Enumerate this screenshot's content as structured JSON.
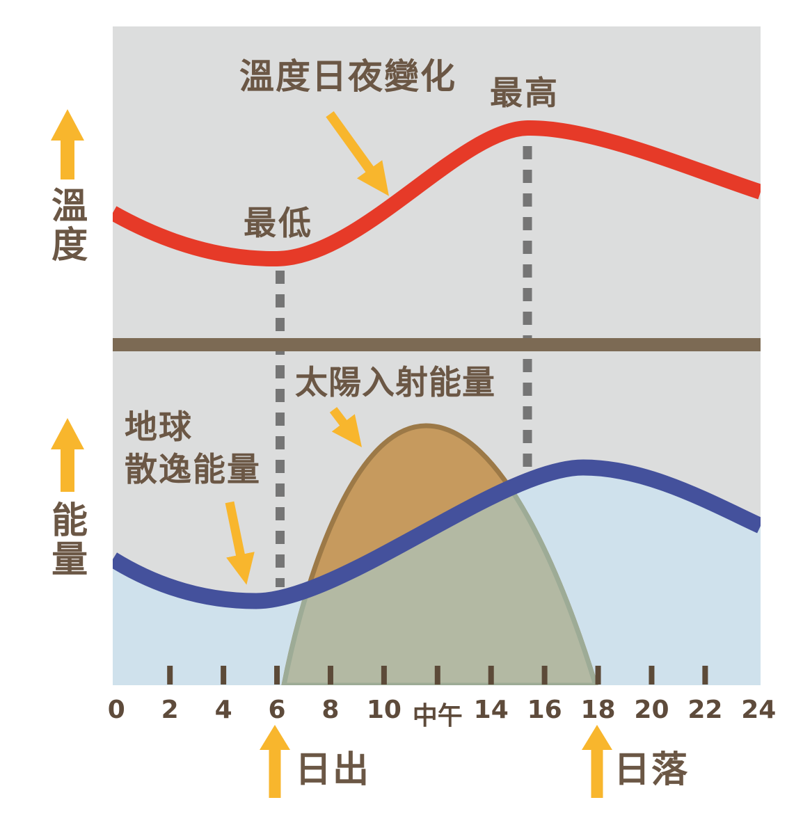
{
  "labels": {
    "curve_title": "溫度日夜變化",
    "temp_min": "最低",
    "temp_max": "最高",
    "left_axis_top": "溫度",
    "left_axis_bottom": "能量",
    "solar_label": "太陽入射能量",
    "earth_label_line1": "地球",
    "earth_label_line2": "散逸能量",
    "sunrise": "日出",
    "sunset": "日落"
  },
  "colors": {
    "panel_background": "#dcdddd",
    "divider_bar": "#7c6a54",
    "temperature_curve": "#e63a28",
    "earth_energy_curve": "#44519c",
    "earth_energy_fill": "#cfe1ec",
    "solar_dome_fill": "#c69a5e",
    "solar_dome_stroke": "#9c7947",
    "solar_under_earth_fill": "#b3b9a3",
    "solar_under_earth_stroke": "#9dab96",
    "annotation_arrow": "#f8b62d",
    "dashed_guide": "#757575",
    "axis_tick": "#5c4a38",
    "label_text": "#6b5745",
    "axis_number_text": "#5e4b3b"
  },
  "chart_data": {
    "type": "line",
    "title": "溫度日夜變化",
    "grid": false,
    "legend_position": "none",
    "x_axis": {
      "range": [
        0,
        24
      ],
      "tick_hours": [
        0,
        2,
        4,
        6,
        8,
        10,
        12,
        14,
        16,
        18,
        20,
        22,
        24
      ],
      "tick_labels": [
        "0",
        "2",
        "4",
        "6",
        "8",
        "10",
        "中午",
        "14",
        "16",
        "18",
        "20",
        "22",
        "24"
      ],
      "marked_tick_hours": [
        2,
        4,
        6,
        8,
        10,
        12,
        14,
        16,
        18,
        20,
        22
      ]
    },
    "panels": [
      {
        "axis_label": "溫度",
        "series": [
          {
            "name": "溫度日夜變化",
            "type": "line",
            "color": "#e63a28",
            "x": [
              0,
              2,
              4,
              6,
              8,
              10,
              12,
              14,
              15.5,
              16,
              18,
              20,
              22,
              24
            ],
            "values_relative": [
              0.33,
              0.17,
              0.05,
              0.0,
              0.11,
              0.39,
              0.7,
              0.94,
              1.0,
              0.99,
              0.89,
              0.75,
              0.62,
              0.51
            ],
            "annotations": [
              {
                "label": "最低",
                "hour": 6
              },
              {
                "label": "最高",
                "hour": 15.5
              }
            ]
          }
        ]
      },
      {
        "axis_label": "能量",
        "series": [
          {
            "name": "太陽入射能量",
            "type": "area",
            "fill": "#c69a5e",
            "x": [
              0,
              2,
              4,
              6,
              6.2,
              8,
              10,
              11.5,
              12,
              14,
              16,
              18,
              20,
              22,
              24
            ],
            "values_relative": [
              0,
              0,
              0,
              0,
              0,
              0.52,
              0.9,
              1.0,
              0.98,
              0.76,
              0.44,
              0,
              0,
              0,
              0
            ],
            "span_hours": [
              6.2,
              18
            ],
            "peak_hour": 11.5
          },
          {
            "name": "地球散逸能量",
            "type": "line",
            "color": "#44519c",
            "fill_below": "#cfe1ec",
            "x": [
              0,
              2,
              4,
              5,
              6,
              8,
              10,
              12,
              14,
              16,
              17.5,
              18,
              20,
              22,
              24
            ],
            "values_relative": [
              0.29,
              0.13,
              0.03,
              0.0,
              0.01,
              0.14,
              0.33,
              0.58,
              0.82,
              0.96,
              1.0,
              0.99,
              0.85,
              0.71,
              0.56
            ],
            "min_hour": 5,
            "peak_hour": 17.5
          }
        ]
      }
    ],
    "guide_line_hours": [
      6.1,
      15.4
    ],
    "events": [
      {
        "label": "日出",
        "hour": 6
      },
      {
        "label": "日落",
        "hour": 18
      }
    ]
  }
}
